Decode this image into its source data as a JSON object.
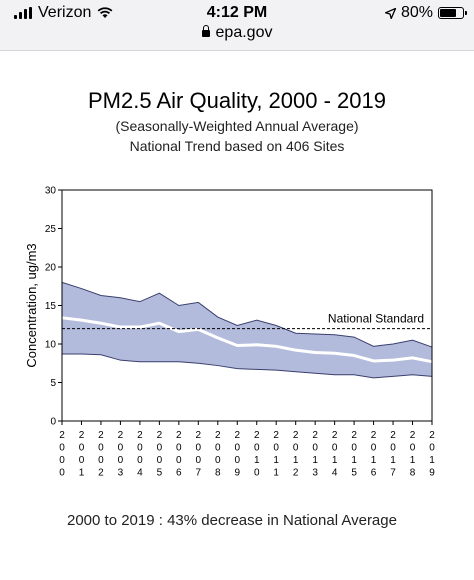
{
  "status_bar": {
    "carrier": "Verizon",
    "time": "4:12 PM",
    "battery": "80%",
    "battery_level": 0.8,
    "icons": [
      "signal-icon",
      "wifi-icon",
      "location-arrow-icon",
      "battery-icon",
      "lock-icon"
    ]
  },
  "browser": {
    "url": "epa.gov"
  },
  "chart": {
    "title": "PM2.5 Air Quality, 2000 - 2019",
    "subtitle": "(Seasonally-Weighted Annual Average)",
    "subtitle2": "National Trend based on 406 Sites",
    "footnote": "2000 to 2019 :  43% decrease in National Average"
  },
  "chart_data": {
    "type": "area",
    "x": [
      2000,
      2001,
      2002,
      2003,
      2004,
      2005,
      2006,
      2007,
      2008,
      2009,
      2010,
      2011,
      2012,
      2013,
      2014,
      2015,
      2016,
      2017,
      2018,
      2019
    ],
    "x_tick_labels": [
      "2000",
      "2001",
      "2002",
      "2003",
      "2004",
      "2005",
      "2006",
      "2007",
      "2008",
      "2009",
      "2010",
      "2011",
      "2012",
      "2013",
      "2014",
      "2015",
      "2016",
      "2017",
      "2018",
      "2019"
    ],
    "ylabel": "Concentration,  ug/m3",
    "ylim": [
      0,
      30
    ],
    "y_ticks": [
      0,
      5,
      10,
      15,
      20,
      25,
      30
    ],
    "series": [
      {
        "name": "",
        "role": "upper_band",
        "values": [
          18.0,
          17.2,
          16.3,
          16.0,
          15.5,
          16.6,
          15.0,
          15.4,
          13.5,
          12.4,
          13.1,
          12.4,
          11.4,
          11.3,
          11.2,
          10.9,
          9.7,
          10.0,
          10.5,
          9.6
        ]
      },
      {
        "name": "",
        "role": "lower_band",
        "values": [
          8.7,
          8.7,
          8.6,
          7.9,
          7.7,
          7.7,
          7.7,
          7.5,
          7.2,
          6.8,
          6.7,
          6.6,
          6.4,
          6.2,
          6.0,
          6.0,
          5.6,
          5.8,
          6.0,
          5.8
        ]
      },
      {
        "name": "",
        "role": "average",
        "values": [
          13.4,
          13.1,
          12.7,
          12.2,
          12.2,
          12.7,
          11.6,
          11.9,
          10.8,
          9.8,
          9.9,
          9.7,
          9.2,
          8.9,
          8.8,
          8.5,
          7.8,
          7.9,
          8.2,
          7.7
        ]
      }
    ],
    "reference_line": {
      "label": "National Standard",
      "value": 12
    },
    "colors": {
      "band": "#b3bbdc",
      "band_border": "#3a3f6e",
      "average": "#ffffff",
      "standard": "#000000"
    },
    "grid": false,
    "legend": "none"
  }
}
